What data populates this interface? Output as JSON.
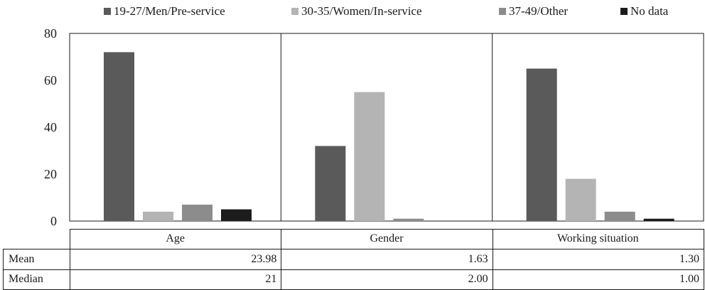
{
  "chart_data": {
    "type": "bar",
    "categories": [
      "Age",
      "Gender",
      "Working situation"
    ],
    "series": [
      {
        "name": "19-27/Men/Pre-service",
        "color": "#5a5a5a",
        "values": [
          72,
          32,
          65
        ]
      },
      {
        "name": "30-35/Women/In-service",
        "color": "#b4b4b4",
        "values": [
          4,
          55,
          18
        ]
      },
      {
        "name": "37-49/Other",
        "color": "#8c8c8c",
        "values": [
          7,
          1,
          4
        ]
      },
      {
        "name": "No data",
        "color": "#1c1c1c",
        "values": [
          5,
          0,
          1
        ]
      }
    ],
    "yticks": [
      "0",
      "20",
      "40",
      "60",
      "80"
    ],
    "ylim": [
      0,
      80
    ],
    "grid": false,
    "legend_position": "top"
  },
  "table": {
    "rows": [
      {
        "label": "Mean",
        "values": [
          "23.98",
          "1.63",
          "1.30"
        ]
      },
      {
        "label": "Median",
        "values": [
          "21",
          "2.00",
          "1.00"
        ]
      }
    ]
  }
}
